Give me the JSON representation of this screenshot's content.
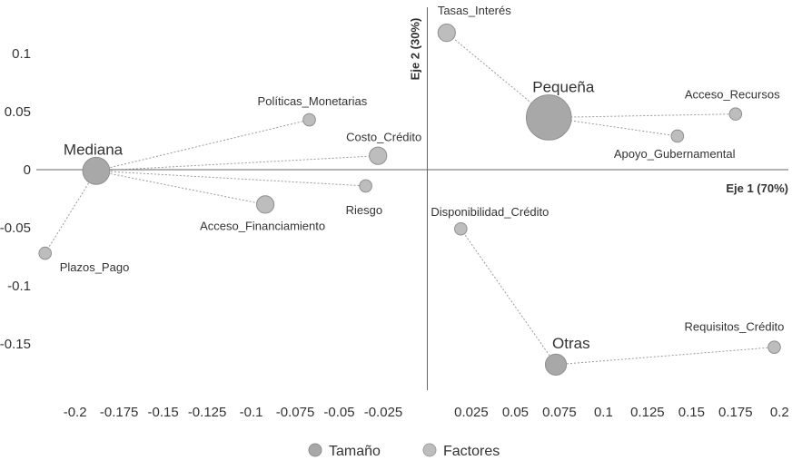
{
  "chart_data": {
    "type": "scatter",
    "title": "",
    "xlabel": "Eje 1 (70%)",
    "ylabel": "Eje 2 (30%)",
    "xlim": [
      -0.222,
      0.205
    ],
    "ylim": [
      -0.19,
      0.14
    ],
    "x_ticks": [
      "-0.2",
      "-0.175",
      "-0.15",
      "-0.125",
      "-0.1",
      "-0.075",
      "-0.05",
      "-0.025",
      "0.025",
      "0.05",
      "0.075",
      "0.1",
      "0.125",
      "0.15",
      "0.175",
      "0.2"
    ],
    "y_ticks": [
      "0.1",
      "0.05",
      "0",
      "-0.05",
      "-0.1",
      "-0.15"
    ],
    "grid": false,
    "legend_position": "bottom-center",
    "series": [
      {
        "name": "Tamaño",
        "color": "#a8a8a8",
        "points": [
          {
            "label": "Mediana",
            "x": -0.188,
            "y": -0.001,
            "weight": 3
          },
          {
            "label": "Pequeña",
            "x": 0.069,
            "y": 0.045,
            "weight": 6
          },
          {
            "label": "Otras",
            "x": 0.073,
            "y": -0.168,
            "weight": 2
          }
        ]
      },
      {
        "name": "Factores",
        "color": "#bdbdbd",
        "points": [
          {
            "label": "Tasas_Interés",
            "x": 0.011,
            "y": 0.118,
            "weight": 2,
            "group": "Pequeña"
          },
          {
            "label": "Acceso_Recursos",
            "x": 0.175,
            "y": 0.048,
            "weight": 1,
            "group": "Pequeña"
          },
          {
            "label": "Apoyo_Gubernamental",
            "x": 0.142,
            "y": 0.029,
            "weight": 1,
            "group": "Pequeña"
          },
          {
            "label": "Políticas_Monetarias",
            "x": -0.067,
            "y": 0.043,
            "weight": 1,
            "group": "Mediana"
          },
          {
            "label": "Costo_Crédito",
            "x": -0.028,
            "y": 0.012,
            "weight": 2,
            "group": "Mediana"
          },
          {
            "label": "Riesgo",
            "x": -0.035,
            "y": -0.014,
            "weight": 1,
            "group": "Mediana"
          },
          {
            "label": "Acceso_Financiamiento",
            "x": -0.092,
            "y": -0.03,
            "weight": 2,
            "group": "Mediana"
          },
          {
            "label": "Plazos_Pago",
            "x": -0.217,
            "y": -0.072,
            "weight": 1,
            "group": "Mediana"
          },
          {
            "label": "Disponibilidad_Crédito",
            "x": 0.019,
            "y": -0.051,
            "weight": 1,
            "group": "Otras"
          },
          {
            "label": "Requisitos_Crédito",
            "x": 0.197,
            "y": -0.153,
            "weight": 1,
            "group": "Otras"
          }
        ]
      }
    ]
  }
}
